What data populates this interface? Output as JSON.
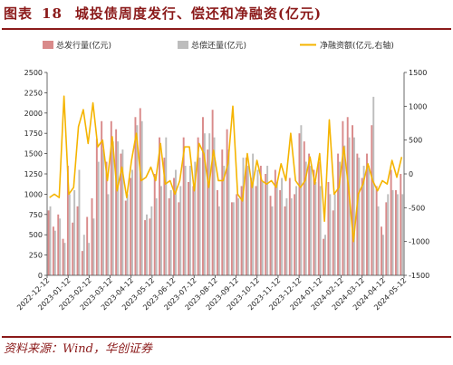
{
  "header": {
    "label": "图表",
    "number": "18",
    "title": "城投债周度发行、偿还和净融资(亿元)"
  },
  "footer": {
    "source": "资料来源：Wind，华创证券"
  },
  "colors": {
    "issuance": "#d98a8a",
    "repayment": "#bdbdbd",
    "net": "#f5b400",
    "accent": "#8b1a1a"
  },
  "chart_data": {
    "type": "bar",
    "legend_placement": "top",
    "grid": false,
    "left_axis": {
      "ylim": [
        0,
        2500
      ],
      "ticks": [
        0,
        250,
        500,
        750,
        1000,
        1250,
        1500,
        1750,
        2000,
        2250,
        2500
      ]
    },
    "right_axis": {
      "ylim": [
        -1500,
        1500
      ],
      "ticks": [
        -1500,
        -1000,
        -500,
        0,
        500,
        1000,
        1500
      ]
    },
    "x_tick_labels": [
      "2022-12-12",
      "2023-01-12",
      "2023-02-12",
      "2023-03-12",
      "2023-04-12",
      "2023-05-12",
      "2023-06-12",
      "2023-07-12",
      "2023-08-12",
      "2023-09-12",
      "2023-10-12",
      "2023-11-12",
      "2023-12-12",
      "2024-01-12",
      "2024-02-12",
      "2024-03-12",
      "2024-04-12",
      "2024-05-12"
    ],
    "series": [
      {
        "name": "总发行量(亿元)",
        "axis": "left",
        "type": "bar",
        "values": [
          800,
          600,
          750,
          450,
          1350,
          650,
          850,
          300,
          720,
          950,
          1680,
          1900,
          1400,
          1900,
          1800,
          1500,
          920,
          1200,
          1950,
          2060,
          680,
          700,
          1250,
          1700,
          1450,
          950,
          1200,
          900,
          1700,
          1150,
          1100,
          1700,
          1950,
          1550,
          2040,
          1050,
          1550,
          1800,
          900,
          1000,
          1100,
          1450,
          1200,
          1100,
          1350,
          1250,
          980,
          1300,
          1050,
          850,
          1200,
          1000,
          1750,
          1650,
          1500,
          1300,
          1400,
          450,
          1150,
          800,
          1500,
          1900,
          1950,
          1850,
          1500,
          1200,
          1500,
          1850,
          1100,
          600,
          900,
          1300,
          1050,
          1250
        ]
      },
      {
        "name": "总偿还量(亿元)",
        "axis": "left",
        "type": "bar",
        "values": [
          850,
          550,
          700,
          400,
          1000,
          1050,
          1300,
          500,
          400,
          700,
          1400,
          1550,
          1000,
          1650,
          1650,
          1550,
          1000,
          1300,
          1850,
          1900,
          750,
          850,
          950,
          1100,
          1700,
          1050,
          1300,
          1100,
          1350,
          1350,
          1400,
          1450,
          1750,
          1750,
          1700,
          850,
          1350,
          1550,
          900,
          950,
          1450,
          1350,
          1500,
          1300,
          1150,
          1350,
          850,
          1150,
          1200,
          950,
          950,
          1100,
          1850,
          1400,
          1350,
          1150,
          1100,
          500,
          1000,
          1000,
          1400,
          1600,
          1700,
          1700,
          1450,
          1350,
          1350,
          2200,
          850,
          500,
          1000,
          1050,
          1000,
          1000
        ]
      },
      {
        "name": "净融资额(亿元,右轴)",
        "axis": "right",
        "type": "line",
        "values": [
          -350,
          -300,
          -350,
          1150,
          -300,
          -200,
          700,
          950,
          450,
          1050,
          400,
          500,
          -100,
          550,
          -250,
          100,
          -350,
          200,
          600,
          -100,
          -50,
          100,
          -100,
          450,
          -150,
          -100,
          -300,
          -100,
          400,
          400,
          -250,
          450,
          300,
          -200,
          350,
          -100,
          -100,
          150,
          1000,
          -300,
          -400,
          300,
          -200,
          200,
          -100,
          -150,
          -100,
          -200,
          150,
          -100,
          600,
          -100,
          -200,
          -100,
          250,
          -150,
          300,
          -700,
          800,
          -300,
          -200,
          400,
          -200,
          -1000,
          -300,
          -150,
          150,
          -100,
          -250,
          -100,
          -150,
          200,
          -50,
          250
        ]
      }
    ]
  }
}
